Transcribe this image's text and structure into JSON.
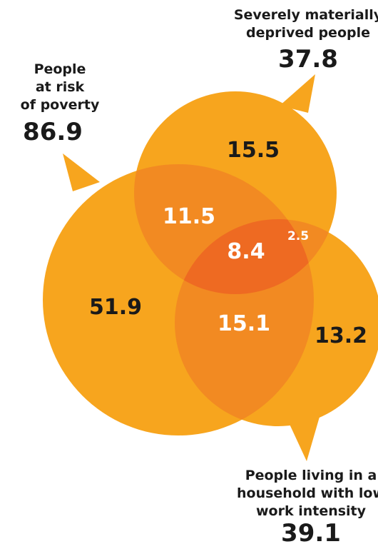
{
  "colors": {
    "circle": "#F7A51E",
    "overlap_two": "#F28A22",
    "overlap_three": "#EE6A22",
    "text_dark": "#1a1a1a",
    "text_light": "#ffffff"
  },
  "sets": {
    "poverty": {
      "line1": "People",
      "line2": "at risk",
      "line3": "of poverty",
      "total": "86.9"
    },
    "deprived": {
      "line1": "Severely materially",
      "line2": "deprived people",
      "total": "37.8"
    },
    "lowwork": {
      "line1": "People living in a",
      "line2": "household with low",
      "line3": "work intensity",
      "total": "39.1"
    }
  },
  "regions": {
    "poverty_only": "51.9",
    "deprived_only": "15.5",
    "lowwork_only": "13.2",
    "poverty_deprived": "11.5",
    "poverty_lowwork": "15.1",
    "deprived_lowwork": "2.5",
    "all_three": "8.4"
  }
}
